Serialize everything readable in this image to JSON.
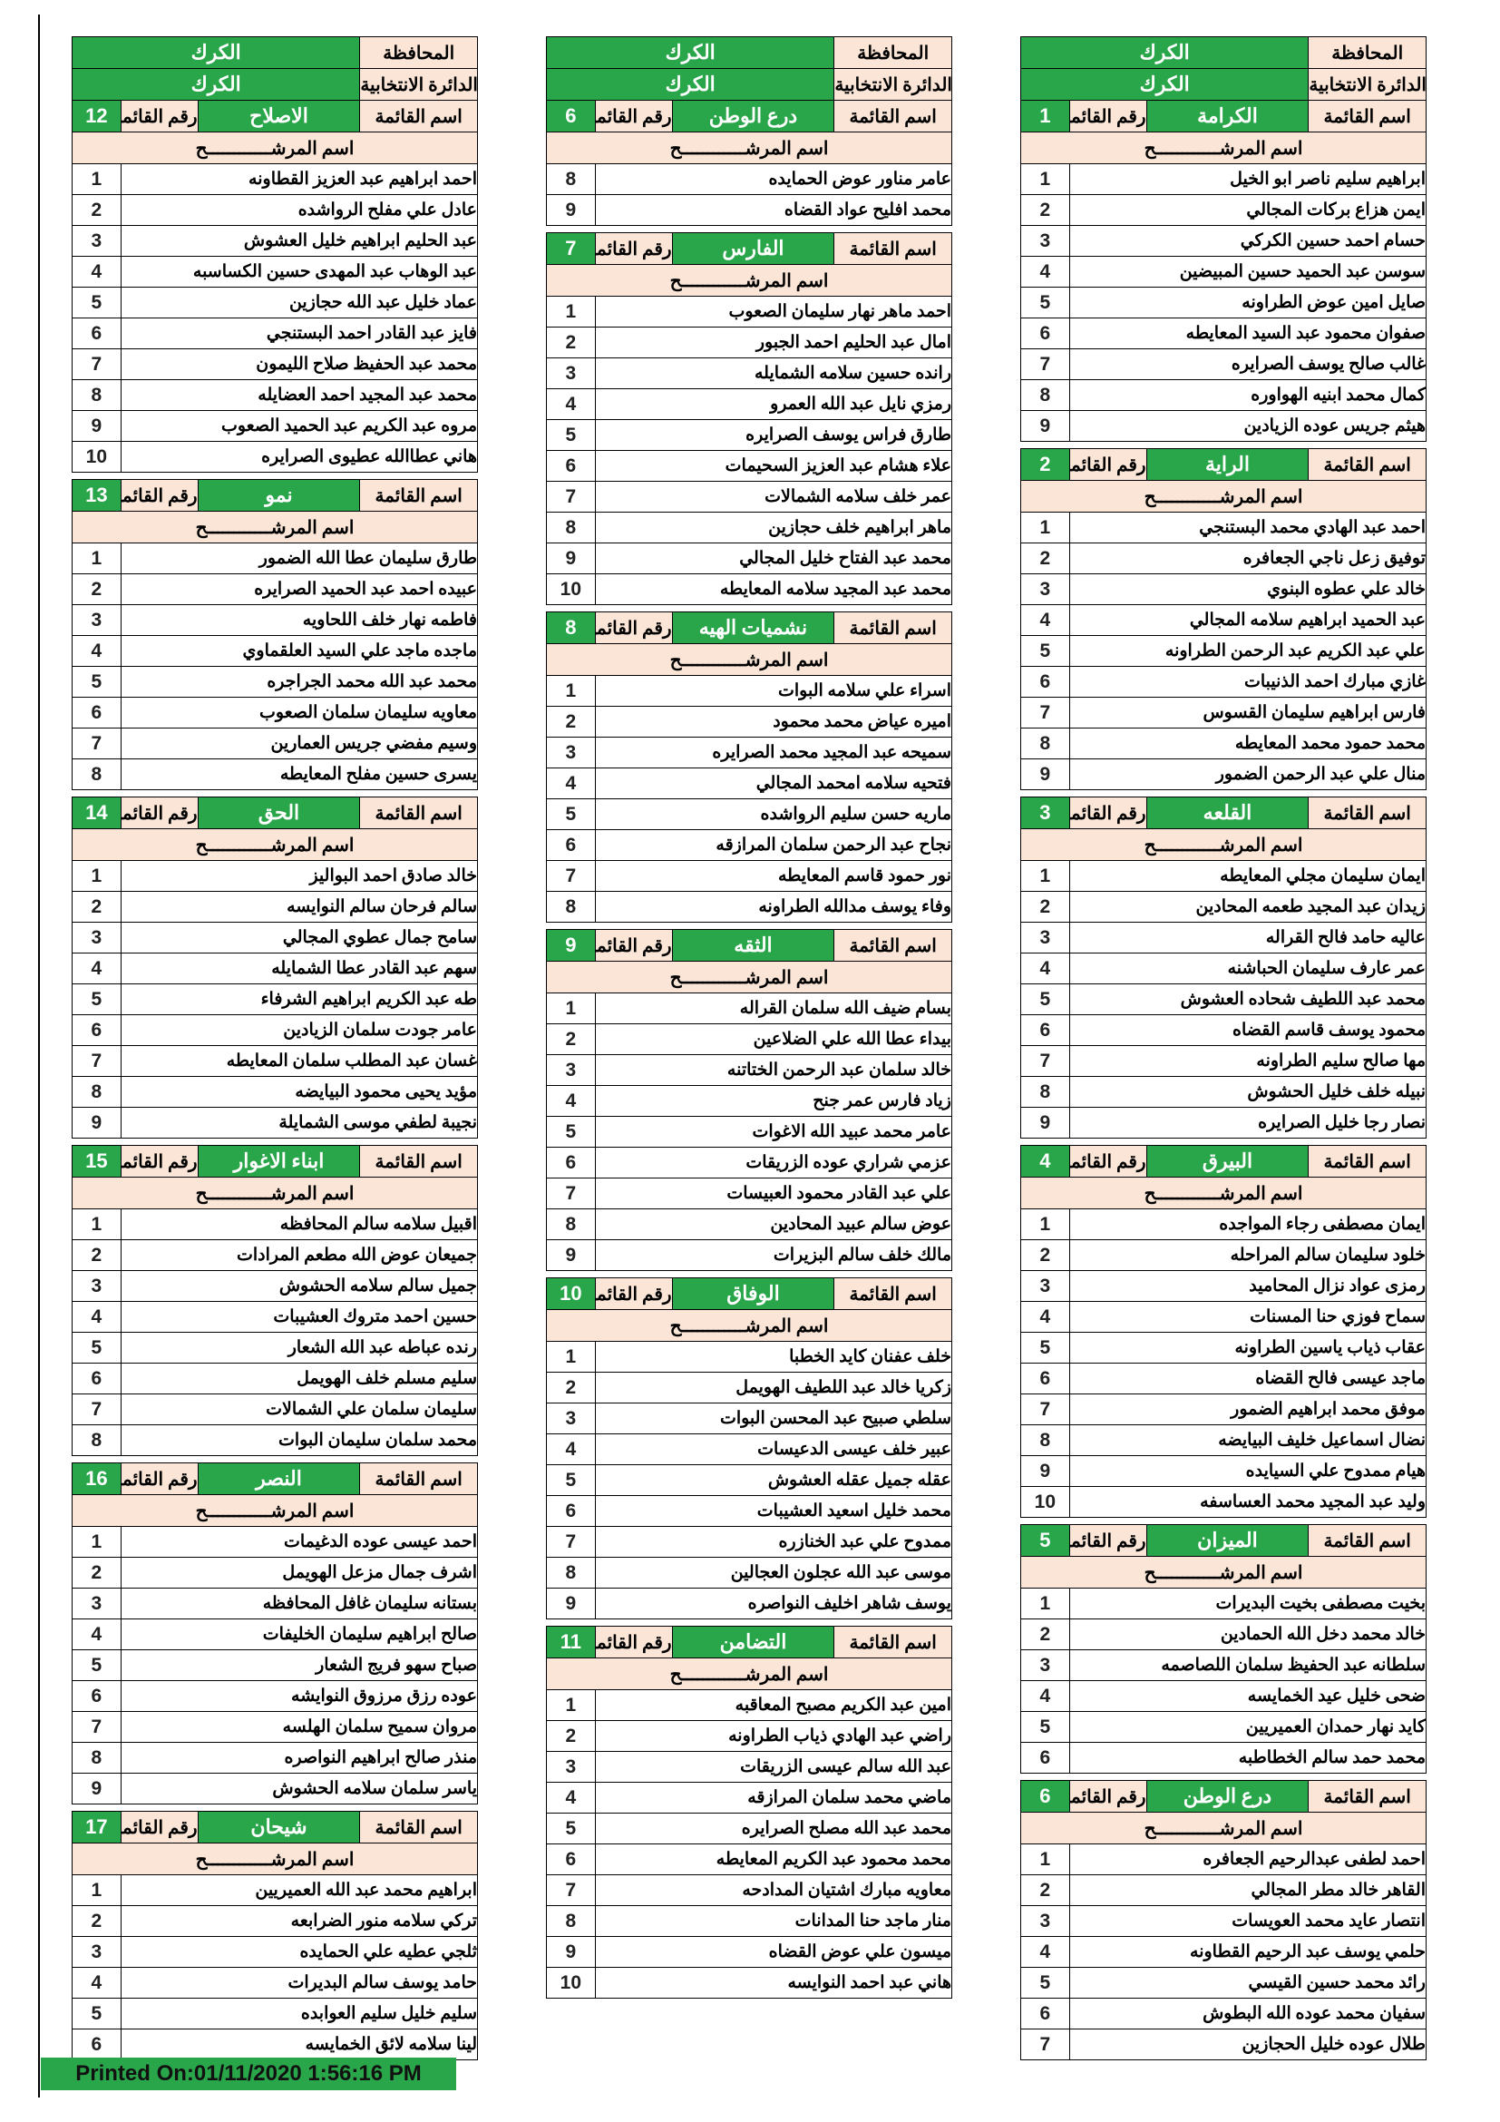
{
  "labels": {
    "governorate_label": "المحافظة",
    "district_label": "الدائرة الانتخابية",
    "list_name_label": "اسم القائمة",
    "list_number_label": "رقم القائمة",
    "candidate_header": "اسم المرشــــــــــــح"
  },
  "governorate": "الكرك",
  "district": "الكرك",
  "footer": "Printed On:01/11/2020 1:56:16 PM",
  "colors": {
    "green": "#2aa64a",
    "peach": "#fbe5d6"
  },
  "columns": [
    {
      "sections": [
        {
          "number": "1",
          "name": "الكرامة",
          "full_header": true,
          "start": 1,
          "candidates": [
            "ابراهيم سليم ناصر ابو الخيل",
            "ايمن هزاع بركات المجالي",
            "حسام احمد حسين الكركي",
            "سوسن عبد الحميد حسين المبيضين",
            "صايل امين عوض الطراونه",
            "صفوان محمود عبد السيد المعايطه",
            "غالب صالح يوسف الصرايره",
            "كمال محمد ابنيه الهواوره",
            "هيثم جريس عوده الزيادين"
          ]
        },
        {
          "number": "2",
          "name": "الراية",
          "full_header": false,
          "start": 1,
          "candidates": [
            "احمد عبد الهادي محمد البستنجي",
            "توفيق زعل ناجي الجعافره",
            "خالد علي عطوه البنوي",
            "عبد الحميد ابراهيم سلامه المجالي",
            "علي عبد الكريم عبد الرحمن الطراونه",
            "غازي مبارك احمد الذنيبات",
            "فارس ابراهيم سليمان القسوس",
            "محمد حمود محمد المعايطه",
            "منال علي عبد الرحمن الضمور"
          ]
        },
        {
          "number": "3",
          "name": "القلعه",
          "full_header": false,
          "start": 1,
          "candidates": [
            "ايمان سليمان مجلي المعايطه",
            "زيدان عبد المجيد طعمه المحادين",
            "عاليه حامد فالح القراله",
            "عمر عارف سليمان الحباشنه",
            "محمد عبد اللطيف شحاده العشوش",
            "محمود يوسف قاسم القضاه",
            "مها صالح سليم الطراونه",
            "نبيله خلف خليل الحشوش",
            "نصار رجا خليل الصرايره"
          ]
        },
        {
          "number": "4",
          "name": "البيرق",
          "full_header": false,
          "start": 1,
          "candidates": [
            "ايمان مصطفى رجاء المواجده",
            "خلود سليمان سالم المراحله",
            "رمزى عواد نزال المحاميد",
            "سماح فوزي حنا المسنات",
            "عقاب ذياب ياسين الطراونه",
            "ماجد عيسى فالح القضاه",
            "موفق محمد ابراهيم الضمور",
            "نضال اسماعيل خليف البيايضه",
            "هيام ممدوح علي السيايده",
            "وليد عبد المجيد محمد العساسفه"
          ]
        },
        {
          "number": "5",
          "name": "الميزان",
          "full_header": false,
          "start": 1,
          "candidates": [
            "بخيت مصطفى بخيت البديرات",
            "خالد محمد دخل الله الحمادين",
            "سلطانه عبد الحفيظ سلمان اللصاصمه",
            "ضحى خليل عيد الخمايسه",
            "كايد نهار حمدان العميريين",
            "محمد حمد سالم الخطاطبه"
          ]
        },
        {
          "number": "6",
          "name": "درع الوطن",
          "full_header": false,
          "start": 1,
          "candidates": [
            "احمد لطفى عبدالرحيم الجعافره",
            "القاهر خالد مطر المجالي",
            "انتصار عايد محمد العويسات",
            "حلمي يوسف عبد الرحيم القطاونه",
            "رائد محمد حسين القيسي",
            "سفيان محمد عوده الله البطوش",
            "طلال عوده خليل الحجازين"
          ]
        }
      ]
    },
    {
      "sections": [
        {
          "number": "6",
          "name": "درع الوطن",
          "full_header": true,
          "start": 8,
          "candidates": [
            "عامر مناور عوض الحمايده",
            "محمد افليح عواد القضاه"
          ]
        },
        {
          "number": "7",
          "name": "الفارس",
          "full_header": false,
          "start": 1,
          "candidates": [
            "احمد ماهر نهار سليمان الصعوب",
            "امال عبد الحليم احمد الجبور",
            "رانده حسين سلامه الشمايله",
            "رمزي نايل عبد الله العمرو",
            "طارق فراس يوسف الصرايره",
            "علاء هشام عبد العزيز السحيمات",
            "عمر خلف سلامه الشمالات",
            "ماهر ابراهيم خلف حجازين",
            "محمد عبد الفتاح خليل المجالي",
            "محمد عبد المجيد سلامه المعايطه"
          ]
        },
        {
          "number": "8",
          "name": "نشميات الهيه",
          "full_header": false,
          "start": 1,
          "candidates": [
            "اسراء علي سلامه البوات",
            "اميره عياض محمد محمود",
            "سميحه عبد المجيد محمد الصرايره",
            "فتحيه سلامه امحمد المجالي",
            "ماريه حسن سليم الرواشده",
            "نجاح عبد الرحمن سلمان المرازقه",
            "نور حمود قاسم المعايطه",
            "وفاء يوسف مدالله الطراونه"
          ]
        },
        {
          "number": "9",
          "name": "الثقه",
          "full_header": false,
          "start": 1,
          "candidates": [
            "بسام ضيف الله سلمان القراله",
            "بيداء عطا الله علي الضلاعين",
            "خالد سلمان عبد الرحمن الختاتنه",
            "زياد فارس عمر جنح",
            "عامر محمد عبيد الله الاغوات",
            "عزمي شراري عوده الزريقات",
            "علي عبد القادر محمود العبيسات",
            "عوض سالم عبيد المحادين",
            "مالك خلف سالم البزيرات"
          ]
        },
        {
          "number": "10",
          "name": "الوفاق",
          "full_header": false,
          "start": 1,
          "candidates": [
            "خلف عفنان كايد الخطبا",
            "زكريا خالد عبد اللطيف الهويمل",
            "سلطي صبيح عبد المحسن البوات",
            "عبير خلف عيسى الدعيسات",
            "عقله جميل عقله العشوش",
            "محمد خليل اسعيد العشيبات",
            "ممدوح علي عبد الخنازره",
            "موسى عبد الله عجلون العجالين",
            "يوسف شاهر اخليف النواصره"
          ]
        },
        {
          "number": "11",
          "name": "التضامن",
          "full_header": false,
          "start": 1,
          "candidates": [
            "امين عبد الكريم مصبح المعاقبه",
            "راضي عبد الهادي ذياب الطراونه",
            "عبد الله سالم عيسى الزريقات",
            "ماضي محمد سلمان المرازقه",
            "محمد عبد الله مصلح الصرايره",
            "محمد محمود عبد الكريم المعايطه",
            "معاويه مبارك اشتيان المدادحه",
            "منار ماجد حنا المدانات",
            "ميسون علي عوض القضاه",
            "هاني عبد احمد النوايسه"
          ]
        }
      ]
    },
    {
      "sections": [
        {
          "number": "12",
          "name": "الاصلاح",
          "full_header": true,
          "start": 1,
          "candidates": [
            "احمد ابراهيم عبد العزيز القطاونه",
            "عادل علي مفلح الرواشده",
            "عبد الحليم ابراهيم خليل العشوش",
            "عبد الوهاب عبد المهدى حسين الكساسبه",
            "عماد خليل عبد الله حجازين",
            "فايز عبد القادر احمد البستنجي",
            "محمد عبد الحفيظ صلاح الليمون",
            "محمد عبد المجيد احمد العضايله",
            "مروه عبد الكريم عبد الحميد الصعوب",
            "هاني عطاالله عطيوى الصرايره"
          ]
        },
        {
          "number": "13",
          "name": "نمو",
          "full_header": false,
          "start": 1,
          "candidates": [
            "طارق سليمان عطا الله الضمور",
            "عبيده احمد عبد الحميد الصرايره",
            "فاطمه نهار خلف اللحاويه",
            "ماجده ماجد علي السيد العلقماوي",
            "محمد عبد الله محمد الجراجره",
            "معاويه سليمان سلمان الصعوب",
            "وسيم مفضي جريس العمارين",
            "يسرى حسين مفلح المعايطه"
          ]
        },
        {
          "number": "14",
          "name": "الحق",
          "full_header": false,
          "start": 1,
          "candidates": [
            "خالد صادق احمد البواليز",
            "سالم فرحان سالم النوايسه",
            "سامح جمال عطوي المجالي",
            "سهم عبد القادر عطا الشمايله",
            "طه عبد الكريم ابراهيم الشرفاء",
            "عامر جودت سلمان الزيادين",
            "غسان عبد المطلب سلمان المعايطه",
            "مؤيد يحيى محمود البيايضه",
            "نجيبة لطفي موسى الشمايلة"
          ]
        },
        {
          "number": "15",
          "name": "ابناء الاغوار",
          "full_header": false,
          "start": 1,
          "candidates": [
            "اقبيل سلامه سالم المحافظه",
            "جميعان عوض الله مطعم المرادات",
            "جميل سالم سلامه الحشوش",
            "حسين احمد متروك العشيبات",
            "رنده عباطه عبد الله الشعار",
            "سليم مسلم خلف الهويمل",
            "سليمان سلمان علي الشمالات",
            "محمد سلمان سليمان البوات"
          ]
        },
        {
          "number": "16",
          "name": "النصر",
          "full_header": false,
          "start": 1,
          "candidates": [
            "احمد عيسى عوده الدغيمات",
            "اشرف جمال مزعل الهويمل",
            "بستانه سليمان غافل المحافظه",
            "صالح ابراهيم سليمان الخليفات",
            "صباح سهو فريج الشعار",
            "عوده رزق مرزوق النوايشه",
            "مروان سميح سلمان الهلسه",
            "منذر صالح ابراهيم النواصره",
            "ياسر سلمان سلامه الحشوش"
          ]
        },
        {
          "number": "17",
          "name": "شيحان",
          "full_header": false,
          "start": 1,
          "candidates": [
            "ابراهيم محمد عبد الله العميريين",
            "تركي سلامه منور الضرابعه",
            "ثلجي عطيه علي الحمايده",
            "حامد يوسف سالم البديرات",
            "سليم خليل سليم العوابده",
            "لينا سلامه لائق الخمايسه"
          ]
        }
      ]
    }
  ]
}
